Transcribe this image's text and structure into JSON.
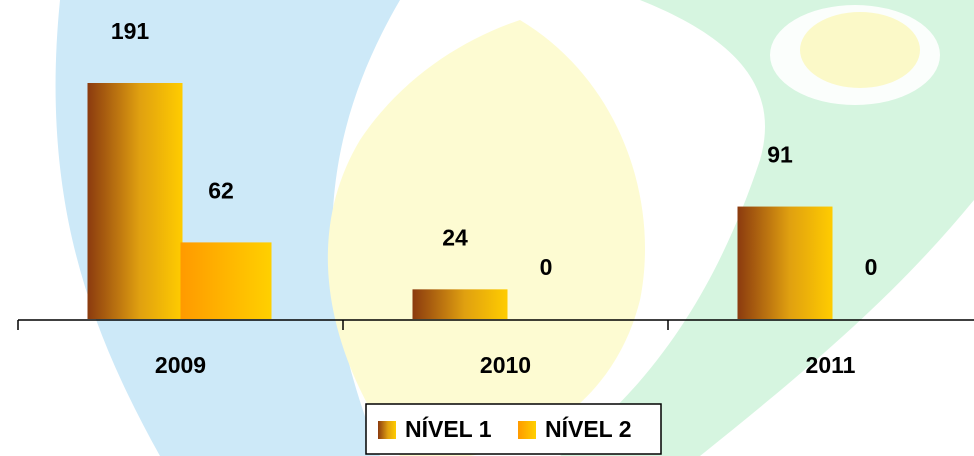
{
  "chart_data": {
    "type": "bar",
    "categories": [
      "2009",
      "2010",
      "2011"
    ],
    "series": [
      {
        "name": "NÍVEL 1",
        "color": "#8b3a0f",
        "values": [
          191,
          24,
          91
        ]
      },
      {
        "name": "NÍVEL 2",
        "color": "#ff9a00",
        "values": [
          62,
          0,
          0
        ]
      }
    ],
    "legend": "bottom"
  }
}
